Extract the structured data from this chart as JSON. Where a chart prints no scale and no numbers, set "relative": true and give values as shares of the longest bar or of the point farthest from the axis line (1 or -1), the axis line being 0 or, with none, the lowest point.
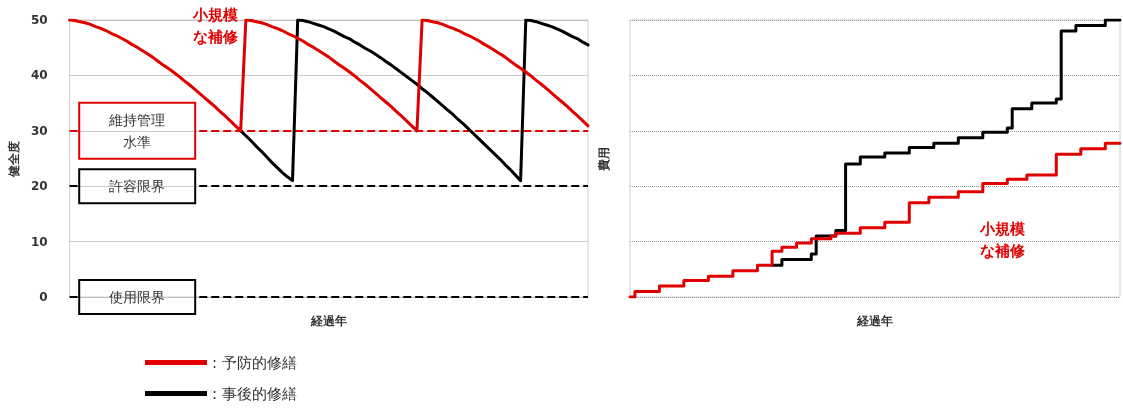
{
  "chart_data": [
    {
      "type": "line",
      "ylabel": "健全度",
      "xlabel": "経過年",
      "ylim": [
        0,
        50
      ],
      "yticks": [
        0,
        10,
        20,
        30,
        40,
        50
      ],
      "grid": "y",
      "legend": "bottom left",
      "marker": "none",
      "line_style": "solid",
      "categories": [
        null,
        null,
        null,
        null,
        null,
        null,
        null,
        null,
        null,
        null,
        null,
        null,
        null,
        null,
        null,
        null,
        null,
        null,
        null,
        null,
        null,
        null,
        null,
        null,
        null,
        null,
        null,
        null,
        null,
        null,
        null,
        null,
        null,
        null,
        null,
        null,
        null,
        null,
        null,
        null,
        null,
        null,
        null,
        null,
        null,
        null,
        null,
        null,
        null,
        null,
        null,
        null,
        null,
        null,
        null,
        null,
        null,
        null,
        null,
        null,
        null,
        null,
        null,
        null,
        null,
        null,
        null,
        null,
        null,
        null,
        null,
        null,
        null,
        null,
        null,
        null,
        null,
        null,
        null,
        null,
        null,
        null,
        null,
        null,
        null,
        null,
        null,
        null,
        null,
        null,
        null,
        null,
        null,
        null,
        null,
        null,
        null,
        null,
        null,
        null,
        null
      ],
      "series": [
        {
          "name": ": 予防的修繕",
          "color": "#e00000",
          "values": [
            50,
            49.9,
            49.7,
            49.5,
            49.2,
            48.8,
            48.5,
            48.1,
            47.6,
            47.2,
            46.7,
            46.2,
            45.6,
            45.1,
            44.5,
            43.9,
            43.3,
            42.6,
            41.9,
            41.3,
            40.6,
            39.9,
            39.1,
            38.4,
            37.6,
            36.8,
            36,
            35.2,
            34.4,
            33.5,
            32.7,
            31.8,
            30.9,
            30,
            50,
            49.9,
            49.7,
            49.5,
            49.2,
            48.8,
            48.5,
            48.1,
            47.6,
            47.2,
            46.7,
            46.2,
            45.6,
            45.1,
            44.5,
            43.9,
            43.3,
            42.6,
            41.9,
            41.3,
            40.6,
            39.9,
            39.1,
            38.4,
            37.6,
            36.8,
            36,
            35.2,
            34.4,
            33.5,
            32.7,
            31.8,
            30.9,
            30,
            50,
            49.9,
            49.7,
            49.5,
            49.2,
            48.8,
            48.5,
            48.1,
            47.6,
            47.2,
            46.7,
            46.2,
            45.6,
            45.1,
            44.5,
            43.9,
            43.3,
            42.6,
            41.9,
            41.3,
            40.6,
            39.9,
            39.1,
            38.4,
            37.6,
            36.8,
            36,
            35.2,
            34.4,
            33.5,
            32.7,
            31.8,
            30.9
          ]
        },
        {
          "name": ": 事後的修繕",
          "color": "#000000",
          "values": [
            null,
            null,
            null,
            null,
            null,
            null,
            null,
            null,
            null,
            null,
            null,
            null,
            null,
            null,
            null,
            null,
            null,
            null,
            null,
            null,
            null,
            null,
            null,
            null,
            null,
            null,
            null,
            null,
            null,
            null,
            null,
            null,
            null,
            30,
            29.1,
            28.2,
            27.2,
            26.3,
            25.3,
            24.3,
            23.4,
            22.5,
            21.7,
            21,
            50,
            49.9,
            49.7,
            49.4,
            49.1,
            48.8,
            48.4,
            48,
            47.5,
            47,
            46.6,
            46,
            45.5,
            44.9,
            44.4,
            43.8,
            43.2,
            42.5,
            41.9,
            41.2,
            40.5,
            39.8,
            39.1,
            38.4,
            37.6,
            36.9,
            36.1,
            35.3,
            34.5,
            33.7,
            32.9,
            32,
            31.2,
            30.3,
            29.4,
            28.5,
            27.6,
            26.7,
            25.8,
            24.9,
            23.9,
            23,
            22,
            21,
            50,
            49.9,
            49.7,
            49.4,
            49.1,
            48.8,
            48.4,
            48,
            47.5,
            47,
            46.6,
            46,
            45.5
          ]
        }
      ],
      "ref_lines": [
        {
          "axis": "y",
          "value": 30,
          "label": "維持管理水準",
          "color": "#e00000",
          "line_style": "dashed"
        },
        {
          "axis": "y",
          "value": 20,
          "label": "許容限界",
          "color": "#000000",
          "line_style": "dashed"
        },
        {
          "axis": "y",
          "value": 0,
          "label": "使用限界",
          "color": "#000000",
          "line_style": "dashed"
        }
      ],
      "annotations": [
        "小規模な補修"
      ]
    },
    {
      "type": "step",
      "relative": true,
      "ylabel": "費用",
      "xlabel": "経過年",
      "grid": "y",
      "marker": "none",
      "line_style": "solid",
      "categories": [
        null,
        null,
        null,
        null,
        null,
        null,
        null,
        null,
        null,
        null,
        null,
        null,
        null,
        null,
        null,
        null,
        null,
        null,
        null,
        null,
        null,
        null,
        null,
        null,
        null,
        null,
        null,
        null,
        null,
        null,
        null,
        null,
        null,
        null,
        null,
        null,
        null,
        null,
        null,
        null,
        null,
        null,
        null,
        null,
        null,
        null,
        null,
        null,
        null,
        null,
        null,
        null,
        null,
        null,
        null,
        null,
        null,
        null,
        null,
        null,
        null,
        null,
        null,
        null,
        null,
        null,
        null,
        null,
        null,
        null,
        null,
        null,
        null,
        null,
        null,
        null,
        null,
        null,
        null,
        null,
        null,
        null,
        null,
        null,
        null,
        null,
        null,
        null,
        null,
        null,
        null,
        null,
        null,
        null,
        null,
        null,
        null,
        null,
        null,
        null,
        null
      ],
      "series": [
        {
          "color": "#e00000",
          "values": [
            0,
            0.02,
            0.02,
            0.02,
            0.02,
            0.02,
            0.04,
            0.04,
            0.04,
            0.04,
            0.04,
            0.06,
            0.06,
            0.06,
            0.06,
            0.06,
            0.075,
            0.075,
            0.075,
            0.075,
            0.075,
            0.095,
            0.095,
            0.095,
            0.095,
            0.095,
            0.115,
            0.115,
            0.115,
            0.165,
            0.165,
            0.18,
            0.18,
            0.18,
            0.195,
            0.195,
            0.195,
            0.21,
            0.21,
            0.21,
            0.21,
            0.22,
            0.23,
            0.23,
            0.23,
            0.23,
            0.23,
            0.25,
            0.25,
            0.25,
            0.25,
            0.25,
            0.27,
            0.27,
            0.27,
            0.27,
            0.27,
            0.34,
            0.34,
            0.34,
            0.34,
            0.36,
            0.36,
            0.36,
            0.36,
            0.36,
            0.36,
            0.38,
            0.38,
            0.38,
            0.38,
            0.38,
            0.41,
            0.41,
            0.41,
            0.41,
            0.41,
            0.425,
            0.425,
            0.425,
            0.425,
            0.44,
            0.44,
            0.44,
            0.44,
            0.44,
            0.44,
            0.515,
            0.515,
            0.515,
            0.515,
            0.515,
            0.535,
            0.535,
            0.535,
            0.535,
            0.535,
            0.555,
            0.555,
            0.555,
            0.555
          ]
        },
        {
          "color": "#000000",
          "values": [
            null,
            null,
            null,
            null,
            null,
            null,
            null,
            null,
            null,
            null,
            null,
            null,
            null,
            null,
            null,
            null,
            null,
            null,
            null,
            null,
            null,
            null,
            null,
            null,
            null,
            null,
            null,
            null,
            null,
            0.115,
            0.115,
            0.135,
            0.135,
            0.135,
            0.135,
            0.135,
            0.135,
            0.155,
            0.22,
            0.22,
            0.22,
            0.22,
            0.24,
            0.24,
            0.48,
            0.48,
            0.48,
            0.505,
            0.505,
            0.505,
            0.505,
            0.505,
            0.52,
            0.52,
            0.52,
            0.52,
            0.52,
            0.54,
            0.54,
            0.54,
            0.54,
            0.54,
            0.555,
            0.555,
            0.555,
            0.555,
            0.555,
            0.575,
            0.575,
            0.575,
            0.575,
            0.575,
            0.595,
            0.595,
            0.595,
            0.595,
            0.595,
            0.61,
            0.68,
            0.68,
            0.68,
            0.68,
            0.7,
            0.7,
            0.7,
            0.7,
            0.7,
            0.715,
            0.96,
            0.96,
            0.96,
            0.98,
            0.98,
            0.98,
            0.98,
            0.98,
            0.98,
            1,
            1,
            1,
            1
          ]
        }
      ],
      "annotations": [
        "小規模な補修"
      ]
    }
  ]
}
